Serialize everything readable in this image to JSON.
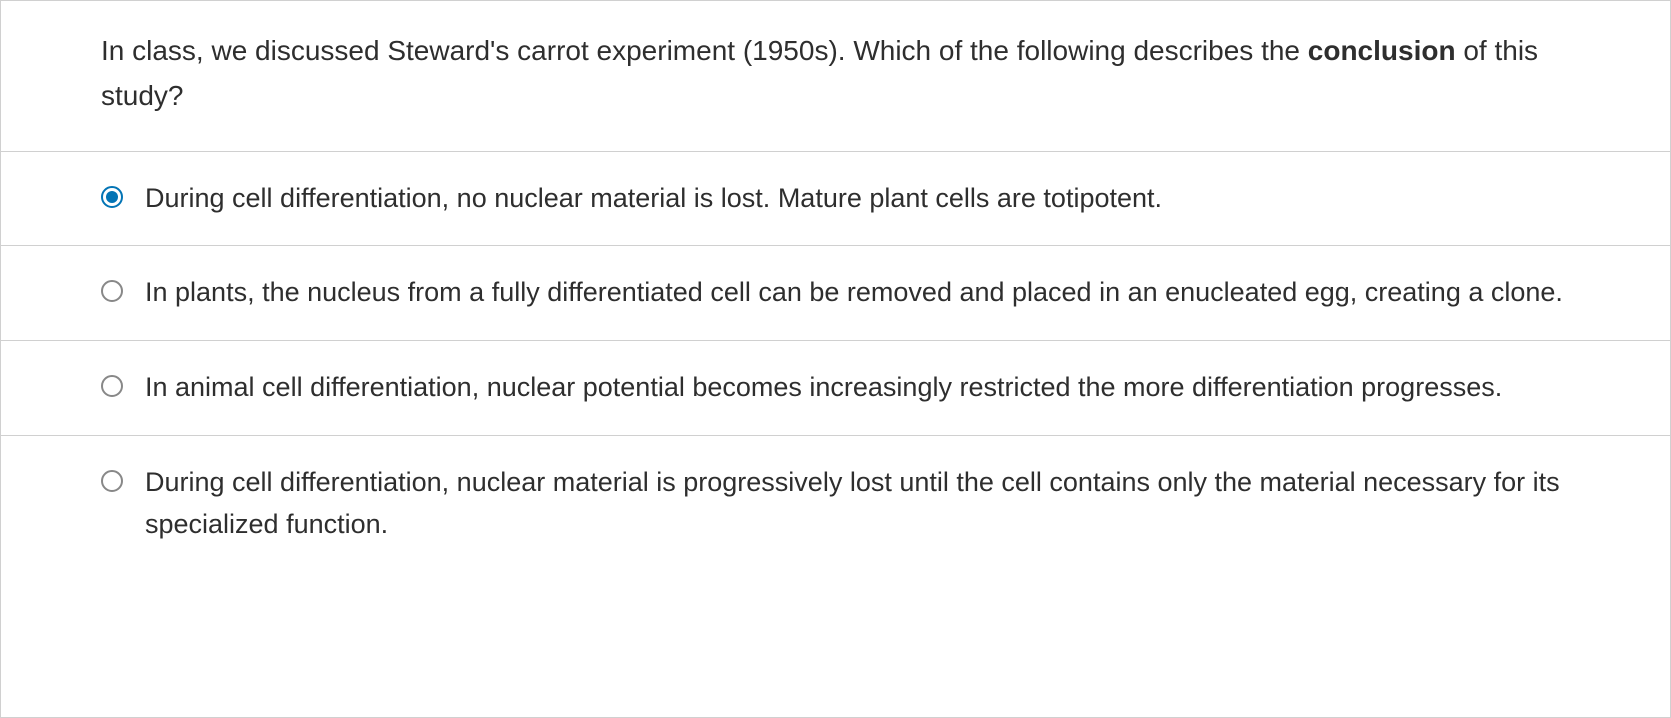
{
  "question": {
    "stem_prefix": "In class, we discussed Steward's carrot experiment (1950s). Which of the following describes the ",
    "stem_bold": "conclusion",
    "stem_suffix": " of this study?"
  },
  "options": [
    {
      "text": "During cell differentiation, no nuclear material is lost. Mature plant cells are totipotent.",
      "selected": true
    },
    {
      "text": "In plants, the nucleus from a fully differentiated cell can be removed and placed in an enucleated egg, creating a clone.",
      "selected": false
    },
    {
      "text": "In animal cell differentiation, nuclear potential becomes increasingly restricted the more differentiation progresses.",
      "selected": false
    },
    {
      "text": "During cell differentiation, nuclear material is progressively lost until the cell contains only the material necessary for its specialized function.",
      "selected": false
    }
  ],
  "colors": {
    "accent": "#0374b5",
    "border": "#d0d0d0",
    "text": "#2e2e2e",
    "background": "#ffffff"
  }
}
